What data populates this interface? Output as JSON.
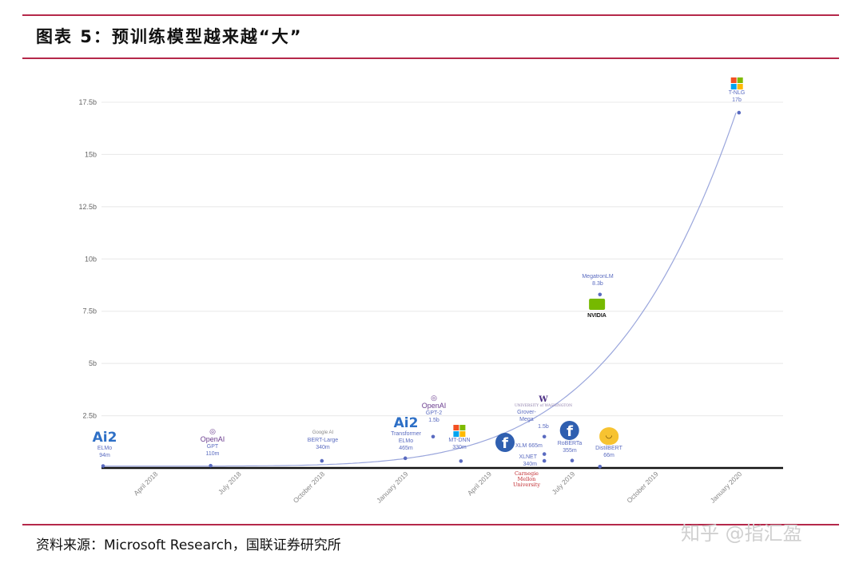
{
  "header": {
    "title": "图表 5：预训练模型越来越“大”"
  },
  "footer": {
    "source": "资料来源：Microsoft Research，国联证券研究所",
    "watermark": "知乎 @指汇盈"
  },
  "colors": {
    "rule": "#b5284a",
    "series": "#5a6bc0",
    "curve": "#9aa6dc",
    "axis": "#111111",
    "grid": "#e8e8e8"
  },
  "chart_data": {
    "type": "scatter",
    "title": "",
    "xlabel": "",
    "ylabel": "",
    "ylim": [
      0,
      17.5
    ],
    "yticks": [
      "2.5b",
      "5b",
      "7.5b",
      "10b",
      "12.5b",
      "15b",
      "17.5b"
    ],
    "xticks": [
      "April 2018",
      "July 2018",
      "October 2018",
      "January 2019",
      "April 2019",
      "July 2019",
      "October 2019",
      "January 2020"
    ],
    "grid": true,
    "trend_line": true,
    "points": [
      {
        "model": "ELMo",
        "params": "94m",
        "value": 0.094,
        "date": "2018-02",
        "org": "Ai2",
        "logo": "ai2-logo"
      },
      {
        "model": "GPT",
        "params": "110m",
        "value": 0.11,
        "date": "2018-06",
        "org": "OpenAI",
        "logo": "openai-logo"
      },
      {
        "model": "BERT-Large",
        "params": "340m",
        "value": 0.34,
        "date": "2018-10",
        "org": "Google AI",
        "logo": "google-ai-logo"
      },
      {
        "model": "Transformer ELMo",
        "params": "465m",
        "value": 0.465,
        "date": "2019-01",
        "org": "Ai2",
        "logo": "ai2-logo"
      },
      {
        "model": "GPT-2",
        "params": "1.5b",
        "value": 1.5,
        "date": "2019-02",
        "org": "OpenAI",
        "logo": "openai-logo"
      },
      {
        "model": "MT-DNN",
        "params": "330m",
        "value": 0.33,
        "date": "2019-03",
        "org": "Microsoft",
        "logo": "microsoft-logo"
      },
      {
        "model": "XLM",
        "params": "665m",
        "value": 0.665,
        "date": "2019-06",
        "org": "Facebook",
        "logo": "facebook-logo"
      },
      {
        "model": "XLNET",
        "params": "340m",
        "value": 0.34,
        "date": "2019-06",
        "org": "Carnegie Mellon University",
        "logo": "cmu-logo"
      },
      {
        "model": "Grover-Mega",
        "params": "1.5b",
        "value": 1.5,
        "date": "2019-06",
        "org": "UNIVERSITY of WASHINGTON",
        "logo": "uw-logo"
      },
      {
        "model": "RoBERTa",
        "params": "355m",
        "value": 0.355,
        "date": "2019-07",
        "org": "Facebook",
        "logo": "facebook-logo"
      },
      {
        "model": "DistilBERT",
        "params": "66m",
        "value": 0.066,
        "date": "2019-08",
        "org": "Hugging Face",
        "logo": "huggingface-logo"
      },
      {
        "model": "MegatronLM",
        "params": "8.3b",
        "value": 8.3,
        "date": "2019-08",
        "org": "NVIDIA",
        "logo": "nvidia-logo"
      },
      {
        "model": "T-NLG",
        "params": "17b",
        "value": 17,
        "date": "2020-01",
        "org": "Microsoft",
        "logo": "microsoft-logo"
      }
    ]
  }
}
